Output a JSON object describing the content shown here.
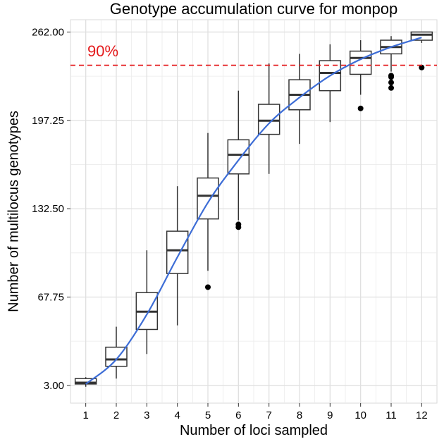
{
  "chart_data": {
    "type": "boxplot",
    "title": "Genotype accumulation curve for monpop",
    "xlabel": "Number of loci sampled",
    "ylabel": "Number of multilocus genotypes",
    "ylim": [
      -10,
      271
    ],
    "y_ticks": [
      "3.00",
      "67.75",
      "132.50",
      "197.25",
      "262.00"
    ],
    "categories": [
      "1",
      "2",
      "3",
      "4",
      "5",
      "6",
      "7",
      "8",
      "9",
      "10",
      "11",
      "12"
    ],
    "boxes": [
      {
        "x": 1,
        "whisker_low": 2,
        "q1": 4,
        "median": 5,
        "q3": 8,
        "whisker_high": 9,
        "outliers": []
      },
      {
        "x": 2,
        "whisker_low": 8,
        "q1": 17,
        "median": 22,
        "q3": 31,
        "whisker_high": 46,
        "outliers": []
      },
      {
        "x": 3,
        "whisker_low": 26,
        "q1": 44,
        "median": 57,
        "q3": 71,
        "whisker_high": 102,
        "outliers": []
      },
      {
        "x": 4,
        "whisker_low": 47,
        "q1": 85,
        "median": 102,
        "q3": 116,
        "whisker_high": 149,
        "outliers": []
      },
      {
        "x": 5,
        "whisker_low": 87,
        "q1": 125,
        "median": 142,
        "q3": 155,
        "whisker_high": 188,
        "outliers": [
          75
        ]
      },
      {
        "x": 6,
        "whisker_low": 124,
        "q1": 158,
        "median": 172,
        "q3": 183,
        "whisker_high": 219,
        "outliers": [
          119,
          121
        ]
      },
      {
        "x": 7,
        "whisker_low": 158,
        "q1": 187,
        "median": 197,
        "q3": 209,
        "whisker_high": 239,
        "outliers": []
      },
      {
        "x": 8,
        "whisker_low": 180,
        "q1": 205,
        "median": 216,
        "q3": 227,
        "whisker_high": 246,
        "outliers": []
      },
      {
        "x": 9,
        "whisker_low": 196,
        "q1": 219,
        "median": 232,
        "q3": 241,
        "whisker_high": 253,
        "outliers": []
      },
      {
        "x": 10,
        "whisker_low": 216,
        "q1": 231,
        "median": 243,
        "q3": 248,
        "whisker_high": 256,
        "outliers": [
          206
        ]
      },
      {
        "x": 11,
        "whisker_low": 233,
        "q1": 246,
        "median": 251,
        "q3": 256,
        "whisker_high": 259,
        "outliers": [
          221,
          225,
          229,
          230
        ]
      },
      {
        "x": 12,
        "whisker_low": 254,
        "q1": 256,
        "median": 260,
        "q3": 262,
        "whisker_high": 262,
        "outliers": [
          236
        ]
      }
    ],
    "trend_line": {
      "x": [
        1,
        2,
        3,
        4,
        5,
        6,
        7,
        8,
        9,
        10,
        11,
        12
      ],
      "y": [
        4,
        22,
        55,
        97,
        137,
        168,
        195,
        214,
        230,
        242,
        251,
        258
      ]
    },
    "reference_line": {
      "y": 237.6,
      "label": "90%"
    },
    "grid": true,
    "colors": {
      "background": "#ffffff",
      "grid": "#ebebeb",
      "box_stroke": "#333333",
      "outlier": "#000000",
      "trend_line": "#3d6dd6",
      "reference_line": "#e41a1c",
      "reference_label": "#e41a1c"
    }
  }
}
